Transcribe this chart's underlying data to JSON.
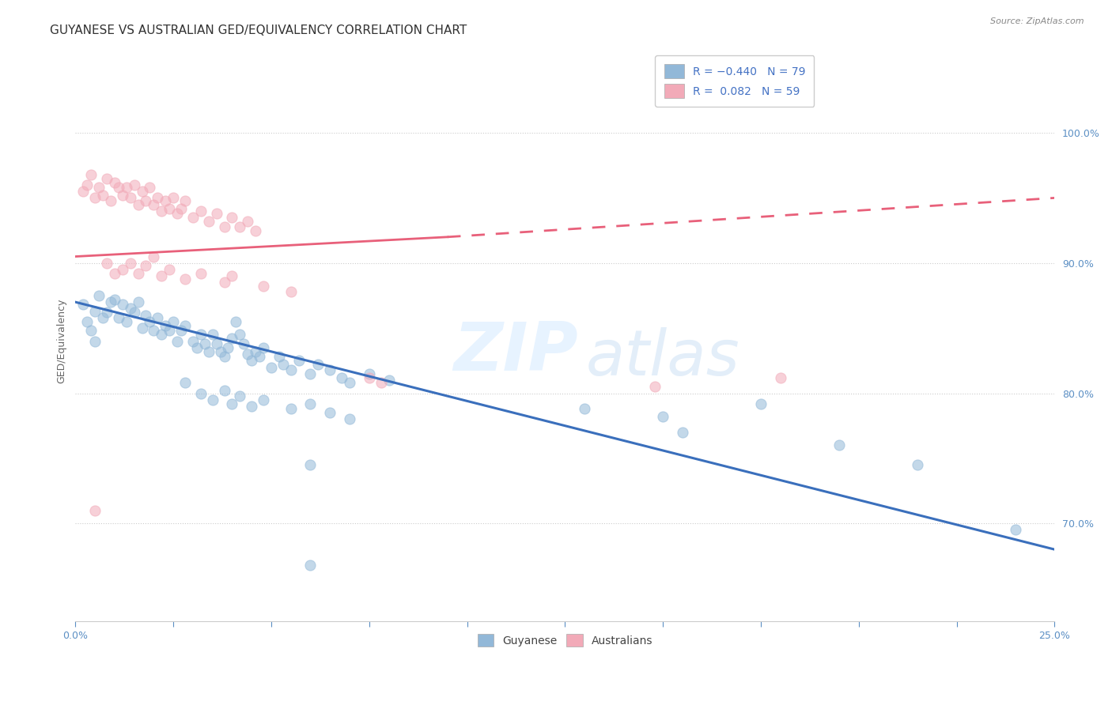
{
  "title": "GUYANESE VS AUSTRALIAN GED/EQUIVALENCY CORRELATION CHART",
  "source": "Source: ZipAtlas.com",
  "ylabel": "GED/Equivalency",
  "xlim": [
    0.0,
    0.25
  ],
  "ylim": [
    0.625,
    1.055
  ],
  "ytick_values": [
    0.7,
    0.8,
    0.9,
    1.0
  ],
  "blue_scatter": [
    [
      0.002,
      0.868
    ],
    [
      0.003,
      0.855
    ],
    [
      0.004,
      0.848
    ],
    [
      0.005,
      0.863
    ],
    [
      0.005,
      0.84
    ],
    [
      0.006,
      0.875
    ],
    [
      0.007,
      0.858
    ],
    [
      0.008,
      0.862
    ],
    [
      0.009,
      0.87
    ],
    [
      0.01,
      0.872
    ],
    [
      0.011,
      0.858
    ],
    [
      0.012,
      0.868
    ],
    [
      0.013,
      0.855
    ],
    [
      0.014,
      0.865
    ],
    [
      0.015,
      0.862
    ],
    [
      0.016,
      0.87
    ],
    [
      0.017,
      0.85
    ],
    [
      0.018,
      0.86
    ],
    [
      0.019,
      0.855
    ],
    [
      0.02,
      0.848
    ],
    [
      0.021,
      0.858
    ],
    [
      0.022,
      0.845
    ],
    [
      0.023,
      0.852
    ],
    [
      0.024,
      0.848
    ],
    [
      0.025,
      0.855
    ],
    [
      0.026,
      0.84
    ],
    [
      0.027,
      0.848
    ],
    [
      0.028,
      0.852
    ],
    [
      0.03,
      0.84
    ],
    [
      0.031,
      0.835
    ],
    [
      0.032,
      0.845
    ],
    [
      0.033,
      0.838
    ],
    [
      0.034,
      0.832
    ],
    [
      0.035,
      0.845
    ],
    [
      0.036,
      0.838
    ],
    [
      0.037,
      0.832
    ],
    [
      0.038,
      0.828
    ],
    [
      0.039,
      0.835
    ],
    [
      0.04,
      0.842
    ],
    [
      0.041,
      0.855
    ],
    [
      0.042,
      0.845
    ],
    [
      0.043,
      0.838
    ],
    [
      0.044,
      0.83
    ],
    [
      0.045,
      0.825
    ],
    [
      0.046,
      0.832
    ],
    [
      0.047,
      0.828
    ],
    [
      0.048,
      0.835
    ],
    [
      0.05,
      0.82
    ],
    [
      0.052,
      0.828
    ],
    [
      0.053,
      0.822
    ],
    [
      0.055,
      0.818
    ],
    [
      0.057,
      0.825
    ],
    [
      0.06,
      0.815
    ],
    [
      0.062,
      0.822
    ],
    [
      0.065,
      0.818
    ],
    [
      0.068,
      0.812
    ],
    [
      0.07,
      0.808
    ],
    [
      0.075,
      0.815
    ],
    [
      0.08,
      0.81
    ],
    [
      0.028,
      0.808
    ],
    [
      0.032,
      0.8
    ],
    [
      0.035,
      0.795
    ],
    [
      0.038,
      0.802
    ],
    [
      0.04,
      0.792
    ],
    [
      0.042,
      0.798
    ],
    [
      0.045,
      0.79
    ],
    [
      0.048,
      0.795
    ],
    [
      0.055,
      0.788
    ],
    [
      0.06,
      0.792
    ],
    [
      0.065,
      0.785
    ],
    [
      0.07,
      0.78
    ],
    [
      0.13,
      0.788
    ],
    [
      0.15,
      0.782
    ],
    [
      0.155,
      0.77
    ],
    [
      0.175,
      0.792
    ],
    [
      0.195,
      0.76
    ],
    [
      0.215,
      0.745
    ],
    [
      0.24,
      0.695
    ],
    [
      0.06,
      0.745
    ],
    [
      0.06,
      0.668
    ]
  ],
  "pink_scatter": [
    [
      0.002,
      0.955
    ],
    [
      0.003,
      0.96
    ],
    [
      0.004,
      0.968
    ],
    [
      0.005,
      0.95
    ],
    [
      0.006,
      0.958
    ],
    [
      0.007,
      0.952
    ],
    [
      0.008,
      0.965
    ],
    [
      0.009,
      0.948
    ],
    [
      0.01,
      0.962
    ],
    [
      0.011,
      0.958
    ],
    [
      0.012,
      0.952
    ],
    [
      0.013,
      0.958
    ],
    [
      0.014,
      0.95
    ],
    [
      0.015,
      0.96
    ],
    [
      0.016,
      0.945
    ],
    [
      0.017,
      0.955
    ],
    [
      0.018,
      0.948
    ],
    [
      0.019,
      0.958
    ],
    [
      0.02,
      0.945
    ],
    [
      0.021,
      0.95
    ],
    [
      0.022,
      0.94
    ],
    [
      0.023,
      0.948
    ],
    [
      0.024,
      0.942
    ],
    [
      0.025,
      0.95
    ],
    [
      0.026,
      0.938
    ],
    [
      0.027,
      0.942
    ],
    [
      0.028,
      0.948
    ],
    [
      0.03,
      0.935
    ],
    [
      0.032,
      0.94
    ],
    [
      0.034,
      0.932
    ],
    [
      0.036,
      0.938
    ],
    [
      0.038,
      0.928
    ],
    [
      0.04,
      0.935
    ],
    [
      0.042,
      0.928
    ],
    [
      0.044,
      0.932
    ],
    [
      0.046,
      0.925
    ],
    [
      0.008,
      0.9
    ],
    [
      0.01,
      0.892
    ],
    [
      0.012,
      0.895
    ],
    [
      0.014,
      0.9
    ],
    [
      0.016,
      0.892
    ],
    [
      0.018,
      0.898
    ],
    [
      0.02,
      0.905
    ],
    [
      0.022,
      0.89
    ],
    [
      0.024,
      0.895
    ],
    [
      0.028,
      0.888
    ],
    [
      0.032,
      0.892
    ],
    [
      0.038,
      0.885
    ],
    [
      0.04,
      0.89
    ],
    [
      0.048,
      0.882
    ],
    [
      0.055,
      0.878
    ],
    [
      0.075,
      0.812
    ],
    [
      0.078,
      0.808
    ],
    [
      0.148,
      0.805
    ],
    [
      0.18,
      0.812
    ],
    [
      0.005,
      0.71
    ]
  ],
  "blue_line_solid": {
    "x": [
      0.0,
      0.25
    ],
    "y": [
      0.87,
      0.68
    ]
  },
  "pink_line_solid": {
    "x": [
      0.0,
      0.095
    ],
    "y": [
      0.905,
      0.92
    ]
  },
  "pink_line_dashed": {
    "x": [
      0.095,
      0.25
    ],
    "y": [
      0.92,
      0.95
    ]
  },
  "blue_color": "#92b8d8",
  "pink_color": "#f2aab8",
  "blue_line_color": "#3a6fbc",
  "pink_line_color": "#e8607a",
  "title_fontsize": 11,
  "axis_label_fontsize": 9,
  "tick_fontsize": 9,
  "legend_fontsize": 10
}
